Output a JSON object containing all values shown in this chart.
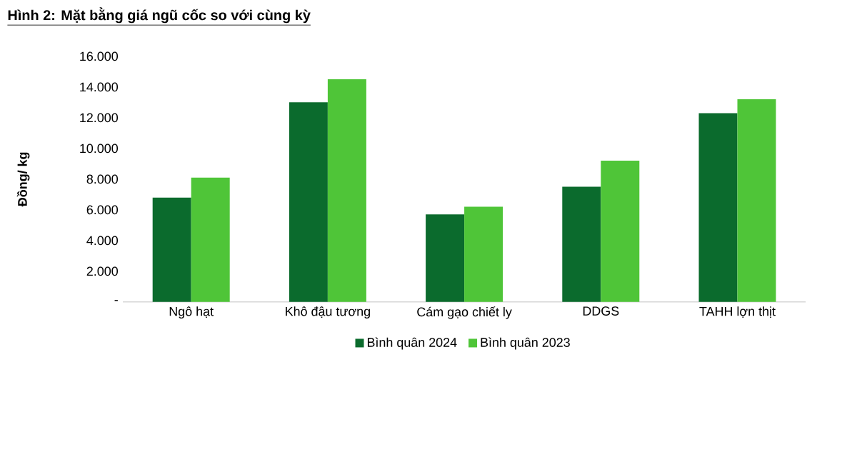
{
  "chart_data": {
    "type": "bar",
    "title": "Hình 2: Mặt bằng giá ngũ cốc so với cùng kỳ",
    "ylabel": "Đồng/ kg",
    "categories": [
      "Ngô hạt",
      "Khô đậu tương",
      "Cám gạo chiết ly",
      "DDGS",
      "TAHH lợn thịt"
    ],
    "series": [
      {
        "name": "Bình quân 2024",
        "color": "#0b6b2d",
        "values": [
          6800,
          13000,
          5700,
          7500,
          12300
        ]
      },
      {
        "name": "Bình quân 2023",
        "color": "#4fc538",
        "values": [
          8100,
          14500,
          6200,
          9200,
          13200
        ]
      }
    ],
    "ylim": [
      0,
      16000
    ],
    "yticks": [
      {
        "value": 0,
        "label": "-"
      },
      {
        "value": 2000,
        "label": "2.000"
      },
      {
        "value": 4000,
        "label": "4.000"
      },
      {
        "value": 6000,
        "label": "6.000"
      },
      {
        "value": 8000,
        "label": "8.000"
      },
      {
        "value": 10000,
        "label": "10.000"
      },
      {
        "value": 12000,
        "label": "12.000"
      },
      {
        "value": 14000,
        "label": "14.000"
      },
      {
        "value": 16000,
        "label": "16.000"
      }
    ],
    "legend": "bottom"
  }
}
